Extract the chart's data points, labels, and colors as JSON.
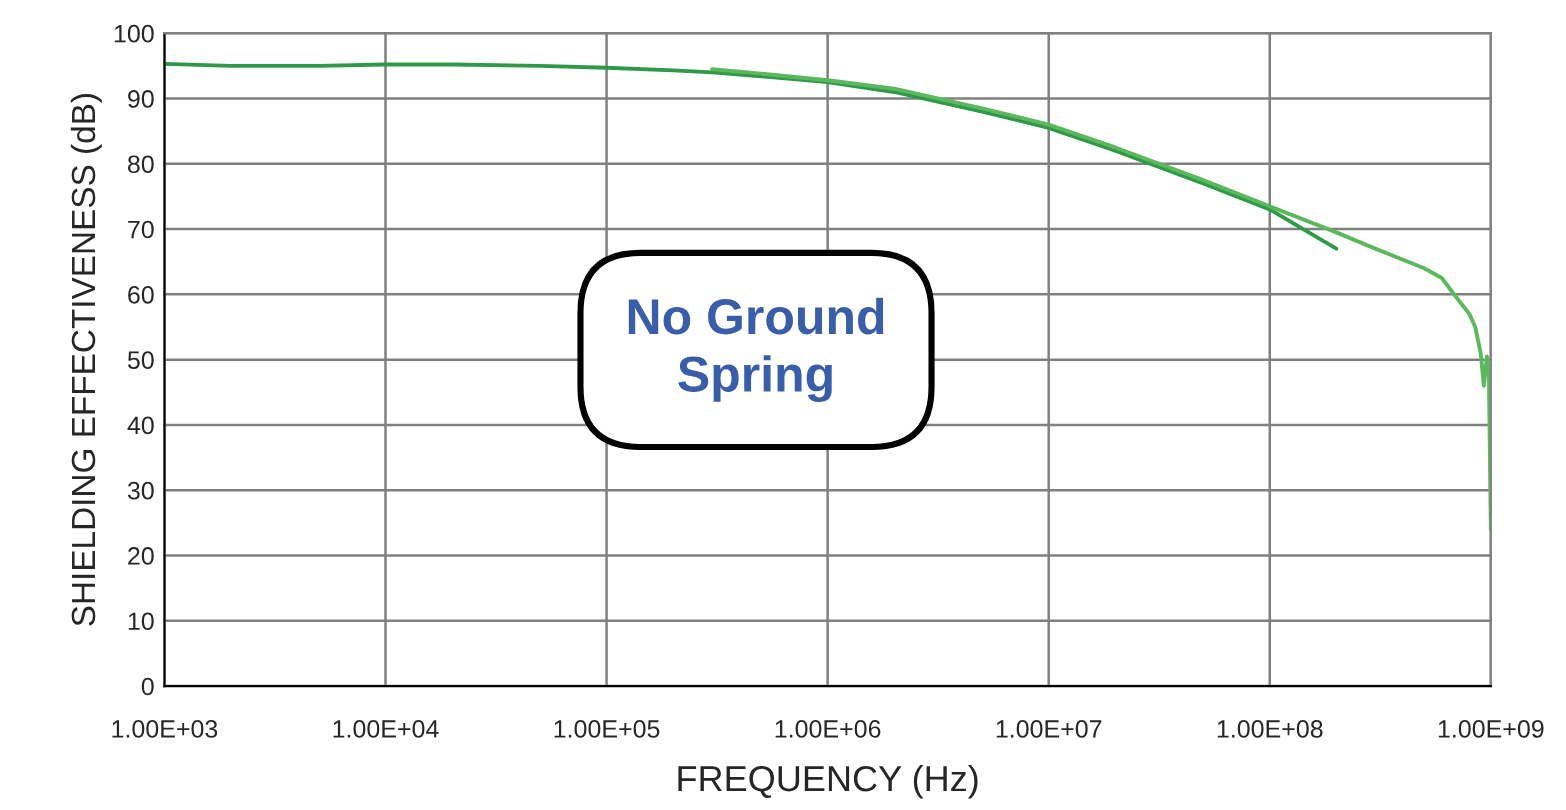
{
  "chart_data": {
    "type": "line",
    "xlabel": "FREQUENCY (Hz)",
    "ylabel": "SHIELDING EFFECTIVENESS (dB)",
    "log": "x",
    "grid": true,
    "legend": false,
    "marker": "none",
    "line_style": "solid",
    "annotations": [
      "No Ground\nSpring"
    ],
    "xlim": [
      1000,
      1000000000
    ],
    "ylim": [
      0,
      100
    ],
    "xticks": [
      {
        "value": 1000,
        "label": "1.00E+03"
      },
      {
        "value": 10000,
        "label": "1.00E+04"
      },
      {
        "value": 100000,
        "label": "1.00E+05"
      },
      {
        "value": 1000000,
        "label": "1.00E+06"
      },
      {
        "value": 10000000,
        "label": "1.00E+07"
      },
      {
        "value": 100000000,
        "label": "1.00E+08"
      },
      {
        "value": 1000000000,
        "label": "1.00E+09"
      }
    ],
    "yticks": [
      0,
      10,
      20,
      30,
      40,
      50,
      60,
      70,
      80,
      90,
      100
    ],
    "series": [
      {
        "color": "#2e9a47",
        "x": [
          1000,
          2000,
          5000,
          10000,
          20000,
          50000,
          100000,
          200000,
          300000,
          500000,
          1000000,
          2000000,
          5000000,
          10000000,
          20000000,
          50000000,
          100000000,
          150000000,
          200000000
        ],
        "values": [
          95.3,
          95,
          95,
          95.2,
          95.2,
          95,
          94.7,
          94.3,
          94,
          93.4,
          92.5,
          91,
          88,
          85.5,
          82,
          77,
          73,
          69.5,
          67
        ]
      },
      {
        "color": "#5cb85c",
        "x": [
          300000,
          500000,
          1000000,
          2000000,
          5000000,
          10000000,
          20000000,
          50000000,
          100000000,
          200000000,
          300000000,
          500000000,
          600000000,
          700000000,
          800000000,
          850000000,
          900000000,
          930000000,
          960000000,
          980000000,
          1000000000
        ],
        "values": [
          94.5,
          93.8,
          92.8,
          91.5,
          88.5,
          86,
          82.5,
          77.5,
          73.5,
          69.5,
          67,
          64,
          62.5,
          59.5,
          57,
          55,
          51,
          46,
          50.5,
          48,
          24
        ]
      }
    ]
  }
}
